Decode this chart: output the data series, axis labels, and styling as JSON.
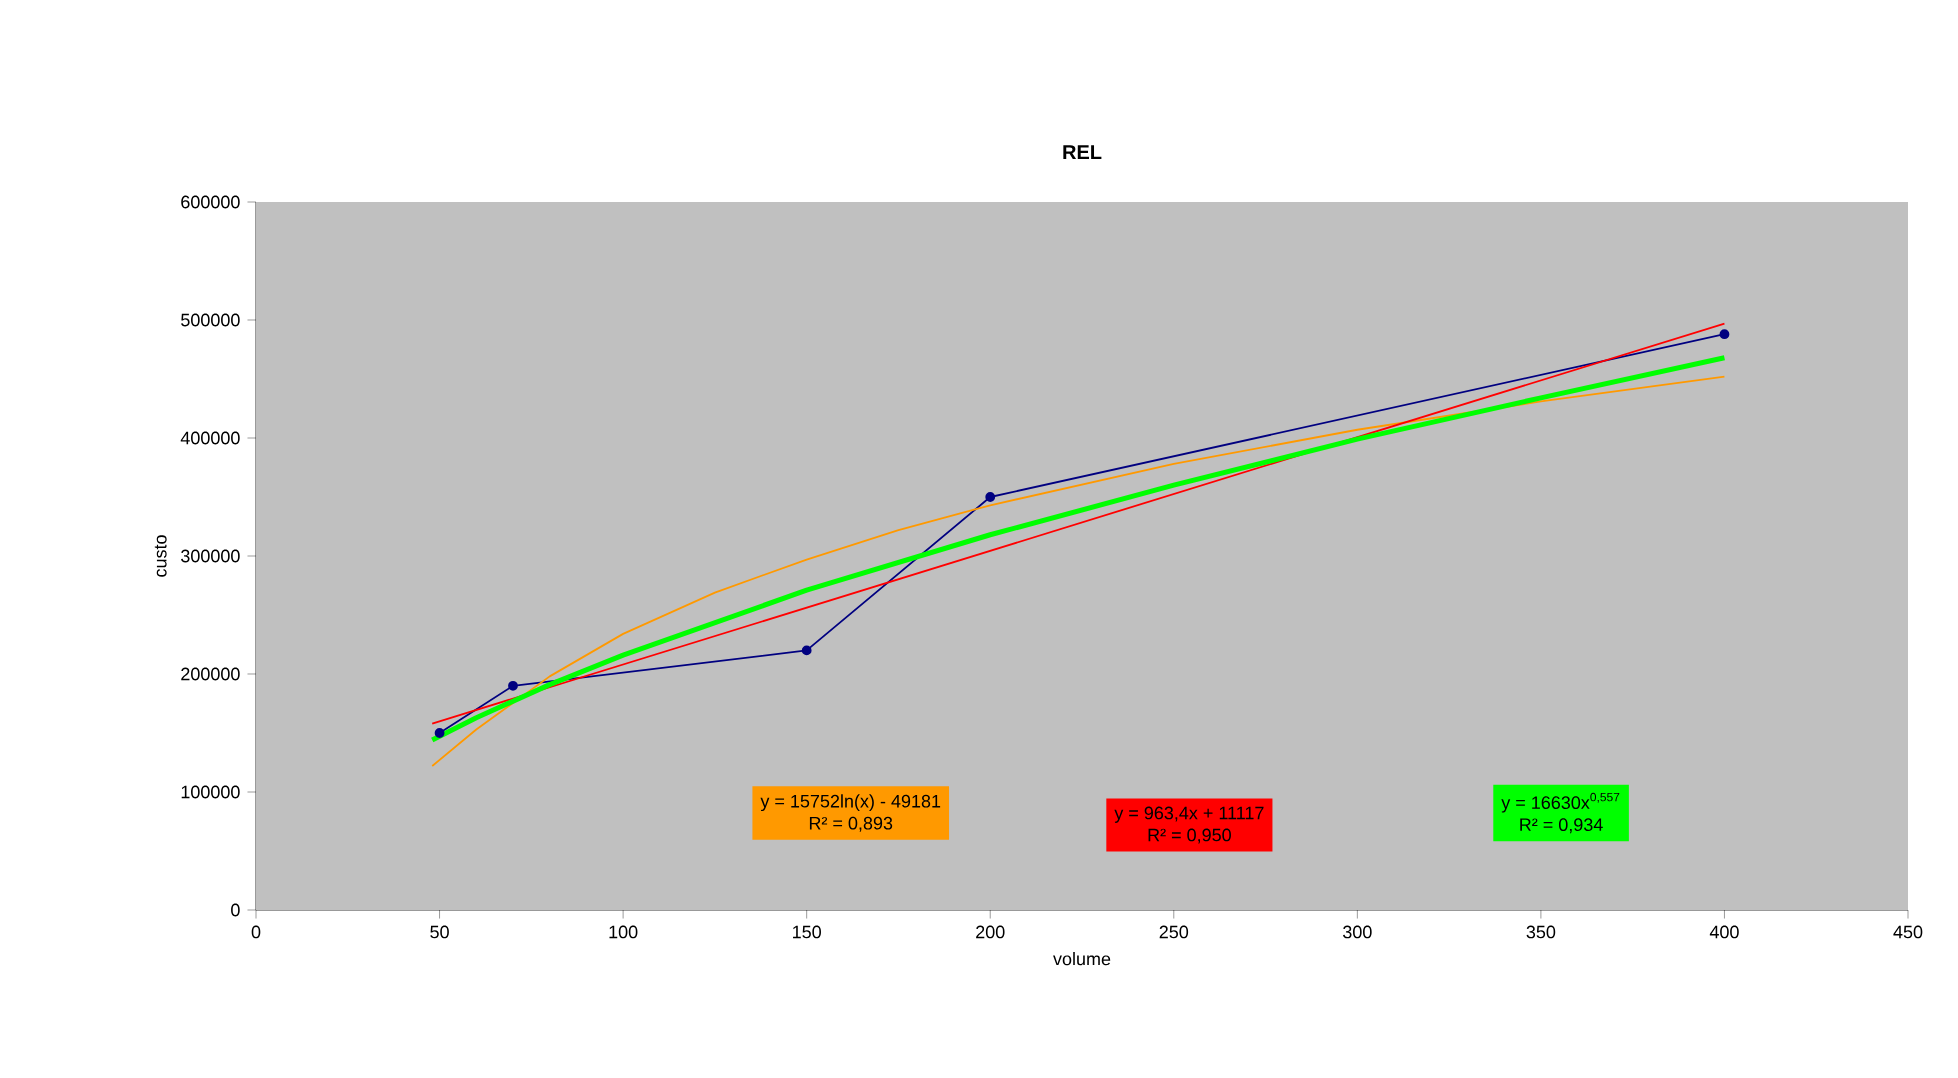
{
  "chart_data": {
    "type": "line",
    "title": "REL",
    "xlabel": "volume",
    "ylabel": "custo",
    "xlim": [
      0,
      450
    ],
    "xticks": [
      0,
      50,
      100,
      150,
      200,
      250,
      300,
      350,
      400,
      450
    ],
    "ylim": [
      0,
      600000
    ],
    "yticks": [
      0,
      100000,
      200000,
      300000,
      400000,
      500000,
      600000
    ],
    "series": [
      {
        "color": "#000080",
        "marker": "circle",
        "x": [
          50,
          70,
          150,
          200,
          400
        ],
        "values": [
          150000,
          190000,
          220000,
          350000,
          488000
        ]
      },
      {
        "color": "#ff9900",
        "x": [
          48,
          60,
          80,
          100,
          125,
          150,
          175,
          200,
          250,
          300,
          350,
          400
        ],
        "values": [
          122000,
          153000,
          198000,
          234000,
          269000,
          297000,
          322000,
          343000,
          378000,
          407000,
          431000,
          452000
        ]
      },
      {
        "color": "#ff0000",
        "x": [
          48,
          400
        ],
        "values": [
          158000,
          497000
        ]
      },
      {
        "color": "#00ff00",
        "x": [
          48,
          60,
          80,
          100,
          150,
          200,
          250,
          300,
          350,
          400
        ],
        "values": [
          144000,
          163000,
          191000,
          216000,
          271000,
          318000,
          360000,
          399000,
          434000,
          468000
        ]
      }
    ],
    "annotations": [
      "y = 15752ln(x) - 49181",
      "R² = 0,893",
      "y = 963,4x + 11117",
      "R² = 0,950",
      "y = 16630x$^{0,557}$",
      "R² = 0,934"
    ]
  }
}
